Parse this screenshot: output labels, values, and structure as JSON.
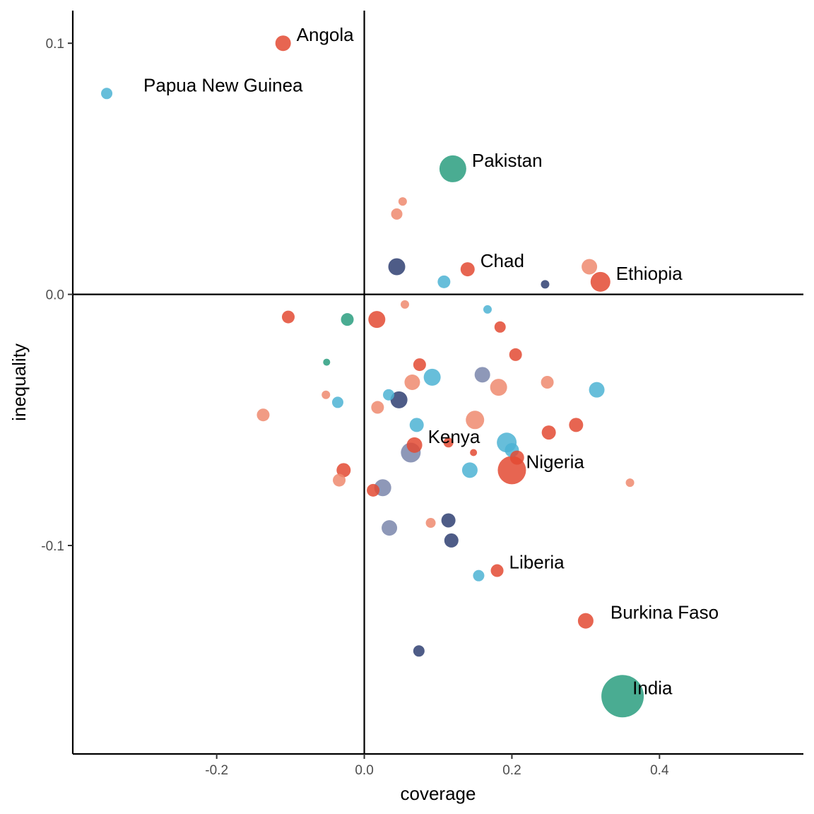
{
  "chart_data": {
    "type": "scatter",
    "title": "",
    "xlabel": "coverage",
    "ylabel": "inequality",
    "xlim": [
      -0.395,
      0.595
    ],
    "ylim": [
      -0.183,
      0.113
    ],
    "xticks": [
      -0.2,
      0.0,
      0.2,
      0.4
    ],
    "xtick_labels": [
      "-0.2",
      "0.0",
      "0.2",
      "0.4"
    ],
    "yticks": [
      -0.1,
      0.0,
      0.1
    ],
    "ytick_labels": [
      "-0.1",
      "0.0",
      "0.1"
    ],
    "reference_lines": {
      "x": 0,
      "y": 0
    },
    "grid": false,
    "colors": {
      "red": "#e34a33",
      "salmon": "#ef8a6f",
      "teal": "#2a9d7f",
      "skyblue": "#4cb3d4",
      "navy": "#2f3f72",
      "slate": "#7a86ab"
    },
    "points": [
      {
        "x": -0.11,
        "y": 0.1,
        "size": 11,
        "color": "red",
        "label": "Angola"
      },
      {
        "x": -0.349,
        "y": 0.08,
        "size": 8,
        "color": "skyblue",
        "label": "Papua New Guinea"
      },
      {
        "x": 0.12,
        "y": 0.05,
        "size": 19,
        "color": "teal",
        "label": "Pakistan"
      },
      {
        "x": 0.14,
        "y": 0.01,
        "size": 10,
        "color": "red",
        "label": "Chad"
      },
      {
        "x": 0.32,
        "y": 0.005,
        "size": 14,
        "color": "red",
        "label": "Ethiopia"
      },
      {
        "x": 0.068,
        "y": -0.06,
        "size": 11,
        "color": "red",
        "label": "Kenya"
      },
      {
        "x": 0.2,
        "y": -0.07,
        "size": 20,
        "color": "red",
        "label": "Nigeria"
      },
      {
        "x": 0.18,
        "y": -0.11,
        "size": 9,
        "color": "red",
        "label": "Liberia"
      },
      {
        "x": 0.3,
        "y": -0.13,
        "size": 11,
        "color": "red",
        "label": "Burkina Faso"
      },
      {
        "x": 0.35,
        "y": -0.16,
        "size": 30,
        "color": "teal",
        "label": "India"
      },
      {
        "x": 0.052,
        "y": 0.037,
        "size": 6,
        "color": "salmon"
      },
      {
        "x": 0.044,
        "y": 0.032,
        "size": 8,
        "color": "salmon"
      },
      {
        "x": 0.044,
        "y": 0.011,
        "size": 12,
        "color": "navy"
      },
      {
        "x": 0.108,
        "y": 0.005,
        "size": 9,
        "color": "skyblue"
      },
      {
        "x": 0.245,
        "y": 0.004,
        "size": 6,
        "color": "navy"
      },
      {
        "x": 0.305,
        "y": 0.011,
        "size": 11,
        "color": "salmon"
      },
      {
        "x": -0.103,
        "y": -0.009,
        "size": 9,
        "color": "red"
      },
      {
        "x": -0.023,
        "y": -0.01,
        "size": 9,
        "color": "teal"
      },
      {
        "x": 0.017,
        "y": -0.01,
        "size": 12,
        "color": "red"
      },
      {
        "x": 0.055,
        "y": -0.004,
        "size": 6,
        "color": "salmon"
      },
      {
        "x": 0.167,
        "y": -0.006,
        "size": 6,
        "color": "skyblue"
      },
      {
        "x": 0.184,
        "y": -0.013,
        "size": 8,
        "color": "red"
      },
      {
        "x": 0.205,
        "y": -0.024,
        "size": 9,
        "color": "red"
      },
      {
        "x": -0.051,
        "y": -0.027,
        "size": 5,
        "color": "teal"
      },
      {
        "x": 0.075,
        "y": -0.028,
        "size": 9,
        "color": "red"
      },
      {
        "x": 0.092,
        "y": -0.033,
        "size": 12,
        "color": "skyblue"
      },
      {
        "x": 0.065,
        "y": -0.035,
        "size": 11,
        "color": "salmon"
      },
      {
        "x": 0.16,
        "y": -0.032,
        "size": 11,
        "color": "slate"
      },
      {
        "x": 0.182,
        "y": -0.037,
        "size": 12,
        "color": "salmon"
      },
      {
        "x": 0.248,
        "y": -0.035,
        "size": 9,
        "color": "salmon"
      },
      {
        "x": 0.315,
        "y": -0.038,
        "size": 11,
        "color": "skyblue"
      },
      {
        "x": -0.052,
        "y": -0.04,
        "size": 6,
        "color": "salmon"
      },
      {
        "x": -0.036,
        "y": -0.043,
        "size": 8,
        "color": "skyblue"
      },
      {
        "x": 0.033,
        "y": -0.04,
        "size": 8,
        "color": "skyblue"
      },
      {
        "x": 0.047,
        "y": -0.042,
        "size": 12,
        "color": "navy"
      },
      {
        "x": 0.018,
        "y": -0.045,
        "size": 9,
        "color": "salmon"
      },
      {
        "x": -0.137,
        "y": -0.048,
        "size": 9,
        "color": "salmon"
      },
      {
        "x": 0.071,
        "y": -0.052,
        "size": 10,
        "color": "skyblue"
      },
      {
        "x": 0.15,
        "y": -0.05,
        "size": 13,
        "color": "salmon"
      },
      {
        "x": 0.25,
        "y": -0.055,
        "size": 10,
        "color": "red"
      },
      {
        "x": 0.287,
        "y": -0.052,
        "size": 10,
        "color": "red"
      },
      {
        "x": 0.114,
        "y": -0.059,
        "size": 7,
        "color": "red"
      },
      {
        "x": 0.148,
        "y": -0.063,
        "size": 5,
        "color": "red"
      },
      {
        "x": 0.063,
        "y": -0.063,
        "size": 14,
        "color": "slate"
      },
      {
        "x": 0.193,
        "y": -0.059,
        "size": 14,
        "color": "skyblue"
      },
      {
        "x": 0.2,
        "y": -0.062,
        "size": 10,
        "color": "skyblue"
      },
      {
        "x": 0.207,
        "y": -0.065,
        "size": 10,
        "color": "red"
      },
      {
        "x": 0.143,
        "y": -0.07,
        "size": 11,
        "color": "skyblue"
      },
      {
        "x": -0.028,
        "y": -0.07,
        "size": 10,
        "color": "red"
      },
      {
        "x": -0.034,
        "y": -0.074,
        "size": 9,
        "color": "salmon"
      },
      {
        "x": 0.012,
        "y": -0.078,
        "size": 9,
        "color": "red"
      },
      {
        "x": 0.025,
        "y": -0.077,
        "size": 12,
        "color": "slate"
      },
      {
        "x": 0.36,
        "y": -0.075,
        "size": 6,
        "color": "salmon"
      },
      {
        "x": 0.034,
        "y": -0.093,
        "size": 11,
        "color": "slate"
      },
      {
        "x": 0.09,
        "y": -0.091,
        "size": 7,
        "color": "salmon"
      },
      {
        "x": 0.114,
        "y": -0.09,
        "size": 10,
        "color": "navy"
      },
      {
        "x": 0.118,
        "y": -0.098,
        "size": 10,
        "color": "navy"
      },
      {
        "x": 0.155,
        "y": -0.112,
        "size": 8,
        "color": "skyblue"
      },
      {
        "x": 0.074,
        "y": -0.142,
        "size": 8,
        "color": "navy"
      }
    ]
  }
}
